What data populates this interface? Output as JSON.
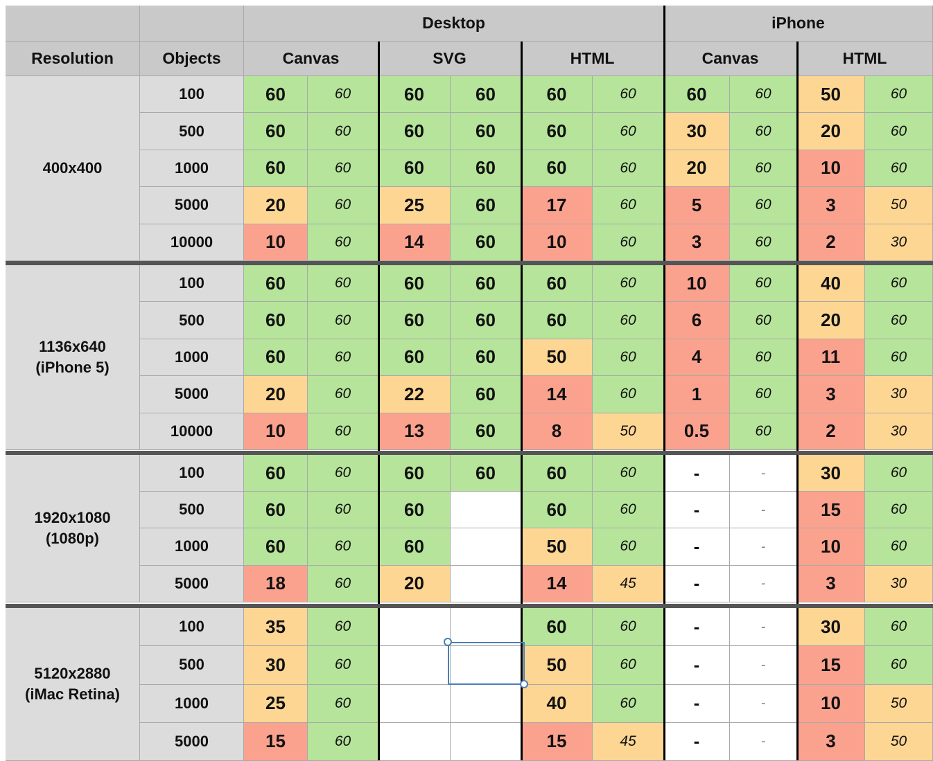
{
  "header": {
    "group_row": [
      "",
      "",
      "Desktop",
      "iPhone"
    ],
    "columns": [
      "Resolution",
      "Objects",
      "Canvas",
      "SVG",
      "HTML",
      "Canvas",
      "HTML"
    ]
  },
  "colors": {
    "green": "#b5e49a",
    "orange": "#fdd693",
    "red": "#fba28f",
    "blank": "#ffffff"
  },
  "sections": [
    {
      "resolution": "400x400",
      "rows": [
        {
          "objects": "100",
          "cells": [
            [
              "60",
              "G"
            ],
            [
              "60",
              "G"
            ],
            [
              "60",
              "G"
            ],
            [
              "60",
              "G"
            ],
            [
              "60",
              "G"
            ],
            [
              "60",
              "G"
            ],
            [
              "60",
              "G"
            ],
            [
              "60",
              "G"
            ],
            [
              "50",
              "O"
            ],
            [
              "60",
              "G"
            ]
          ]
        },
        {
          "objects": "500",
          "cells": [
            [
              "60",
              "G"
            ],
            [
              "60",
              "G"
            ],
            [
              "60",
              "G"
            ],
            [
              "60",
              "G"
            ],
            [
              "60",
              "G"
            ],
            [
              "60",
              "G"
            ],
            [
              "30",
              "O"
            ],
            [
              "60",
              "G"
            ],
            [
              "20",
              "O"
            ],
            [
              "60",
              "G"
            ]
          ]
        },
        {
          "objects": "1000",
          "cells": [
            [
              "60",
              "G"
            ],
            [
              "60",
              "G"
            ],
            [
              "60",
              "G"
            ],
            [
              "60",
              "G"
            ],
            [
              "60",
              "G"
            ],
            [
              "60",
              "G"
            ],
            [
              "20",
              "O"
            ],
            [
              "60",
              "G"
            ],
            [
              "10",
              "R"
            ],
            [
              "60",
              "G"
            ]
          ]
        },
        {
          "objects": "5000",
          "cells": [
            [
              "20",
              "O"
            ],
            [
              "60",
              "G"
            ],
            [
              "25",
              "O"
            ],
            [
              "60",
              "G"
            ],
            [
              "17",
              "R"
            ],
            [
              "60",
              "G"
            ],
            [
              "5",
              "R"
            ],
            [
              "60",
              "G"
            ],
            [
              "3",
              "R"
            ],
            [
              "50",
              "O"
            ]
          ]
        },
        {
          "objects": "10000",
          "cells": [
            [
              "10",
              "R"
            ],
            [
              "60",
              "G"
            ],
            [
              "14",
              "R"
            ],
            [
              "60",
              "G"
            ],
            [
              "10",
              "R"
            ],
            [
              "60",
              "G"
            ],
            [
              "3",
              "R"
            ],
            [
              "60",
              "G"
            ],
            [
              "2",
              "R"
            ],
            [
              "30",
              "O"
            ]
          ]
        }
      ]
    },
    {
      "resolution": "1136x640\n(iPhone 5)",
      "rows": [
        {
          "objects": "100",
          "cells": [
            [
              "60",
              "G"
            ],
            [
              "60",
              "G"
            ],
            [
              "60",
              "G"
            ],
            [
              "60",
              "G"
            ],
            [
              "60",
              "G"
            ],
            [
              "60",
              "G"
            ],
            [
              "10",
              "R"
            ],
            [
              "60",
              "G"
            ],
            [
              "40",
              "O"
            ],
            [
              "60",
              "G"
            ]
          ]
        },
        {
          "objects": "500",
          "cells": [
            [
              "60",
              "G"
            ],
            [
              "60",
              "G"
            ],
            [
              "60",
              "G"
            ],
            [
              "60",
              "G"
            ],
            [
              "60",
              "G"
            ],
            [
              "60",
              "G"
            ],
            [
              "6",
              "R"
            ],
            [
              "60",
              "G"
            ],
            [
              "20",
              "O"
            ],
            [
              "60",
              "G"
            ]
          ]
        },
        {
          "objects": "1000",
          "cells": [
            [
              "60",
              "G"
            ],
            [
              "60",
              "G"
            ],
            [
              "60",
              "G"
            ],
            [
              "60",
              "G"
            ],
            [
              "50",
              "O"
            ],
            [
              "60",
              "G"
            ],
            [
              "4",
              "R"
            ],
            [
              "60",
              "G"
            ],
            [
              "11",
              "R"
            ],
            [
              "60",
              "G"
            ]
          ]
        },
        {
          "objects": "5000",
          "cells": [
            [
              "20",
              "O"
            ],
            [
              "60",
              "G"
            ],
            [
              "22",
              "O"
            ],
            [
              "60",
              "G"
            ],
            [
              "14",
              "R"
            ],
            [
              "60",
              "G"
            ],
            [
              "1",
              "R"
            ],
            [
              "60",
              "G"
            ],
            [
              "3",
              "R"
            ],
            [
              "30",
              "O"
            ]
          ]
        },
        {
          "objects": "10000",
          "cells": [
            [
              "10",
              "R"
            ],
            [
              "60",
              "G"
            ],
            [
              "13",
              "R"
            ],
            [
              "60",
              "G"
            ],
            [
              "8",
              "R"
            ],
            [
              "50",
              "O"
            ],
            [
              "0.5",
              "R"
            ],
            [
              "60",
              "G"
            ],
            [
              "2",
              "R"
            ],
            [
              "30",
              "O"
            ]
          ]
        }
      ]
    },
    {
      "resolution": "1920x1080\n(1080p)",
      "rows": [
        {
          "objects": "100",
          "cells": [
            [
              "60",
              "G"
            ],
            [
              "60",
              "G"
            ],
            [
              "60",
              "G"
            ],
            [
              "60",
              "G"
            ],
            [
              "60",
              "G"
            ],
            [
              "60",
              "G"
            ],
            [
              "-",
              "W"
            ],
            [
              "-",
              "W"
            ],
            [
              "30",
              "O"
            ],
            [
              "60",
              "G"
            ]
          ]
        },
        {
          "objects": "500",
          "cells": [
            [
              "60",
              "G"
            ],
            [
              "60",
              "G"
            ],
            [
              "60",
              "G"
            ],
            [
              "",
              "W"
            ],
            [
              "60",
              "G"
            ],
            [
              "60",
              "G"
            ],
            [
              "-",
              "W"
            ],
            [
              "-",
              "W"
            ],
            [
              "15",
              "R"
            ],
            [
              "60",
              "G"
            ]
          ]
        },
        {
          "objects": "1000",
          "cells": [
            [
              "60",
              "G"
            ],
            [
              "60",
              "G"
            ],
            [
              "60",
              "G"
            ],
            [
              "",
              "W"
            ],
            [
              "50",
              "O"
            ],
            [
              "60",
              "G"
            ],
            [
              "-",
              "W"
            ],
            [
              "-",
              "W"
            ],
            [
              "10",
              "R"
            ],
            [
              "60",
              "G"
            ]
          ]
        },
        {
          "objects": "5000",
          "cells": [
            [
              "18",
              "R"
            ],
            [
              "60",
              "G"
            ],
            [
              "20",
              "O"
            ],
            [
              "",
              "W"
            ],
            [
              "14",
              "R"
            ],
            [
              "45",
              "O"
            ],
            [
              "-",
              "W"
            ],
            [
              "-",
              "W"
            ],
            [
              "3",
              "R"
            ],
            [
              "30",
              "O"
            ]
          ]
        }
      ]
    },
    {
      "resolution": "5120x2880\n(iMac Retina)",
      "rows": [
        {
          "objects": "100",
          "cells": [
            [
              "35",
              "O"
            ],
            [
              "60",
              "G"
            ],
            [
              "",
              "W"
            ],
            [
              "",
              "W"
            ],
            [
              "60",
              "G"
            ],
            [
              "60",
              "G"
            ],
            [
              "-",
              "W"
            ],
            [
              "-",
              "W"
            ],
            [
              "30",
              "O"
            ],
            [
              "60",
              "G"
            ]
          ]
        },
        {
          "objects": "500",
          "cells": [
            [
              "30",
              "O"
            ],
            [
              "60",
              "G"
            ],
            [
              "",
              "W"
            ],
            [
              "",
              "W"
            ],
            [
              "50",
              "O"
            ],
            [
              "60",
              "G"
            ],
            [
              "-",
              "W"
            ],
            [
              "-",
              "W"
            ],
            [
              "15",
              "R"
            ],
            [
              "60",
              "G"
            ]
          ]
        },
        {
          "objects": "1000",
          "cells": [
            [
              "25",
              "O"
            ],
            [
              "60",
              "G"
            ],
            [
              "",
              "W"
            ],
            [
              "",
              "W"
            ],
            [
              "40",
              "O"
            ],
            [
              "60",
              "G"
            ],
            [
              "-",
              "W"
            ],
            [
              "-",
              "W"
            ],
            [
              "10",
              "R"
            ],
            [
              "50",
              "O"
            ]
          ]
        },
        {
          "objects": "5000",
          "cells": [
            [
              "15",
              "R"
            ],
            [
              "60",
              "G"
            ],
            [
              "",
              "W"
            ],
            [
              "",
              "W"
            ],
            [
              "15",
              "R"
            ],
            [
              "45",
              "O"
            ],
            [
              "-",
              "W"
            ],
            [
              "-",
              "W"
            ],
            [
              "3",
              "R"
            ],
            [
              "50",
              "O"
            ]
          ]
        }
      ]
    }
  ]
}
